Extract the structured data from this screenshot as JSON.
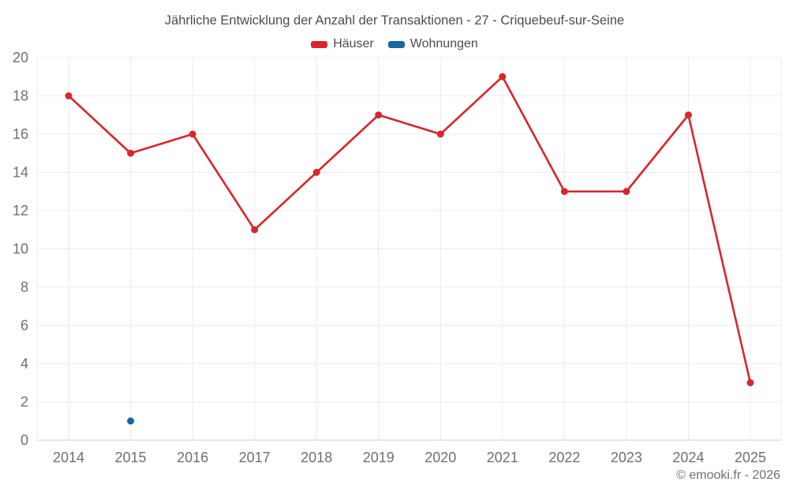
{
  "title": "Jährliche Entwicklung der Anzahl der Transaktionen - 27 - Criquebeuf-sur-Seine",
  "legend": [
    {
      "label": "Häuser",
      "color": "#d7262c"
    },
    {
      "label": "Wohnungen",
      "color": "#1668a2"
    }
  ],
  "copyright": "© emooki.fr - 2026",
  "chart_data": {
    "type": "line",
    "title": "Jährliche Entwicklung der Anzahl der Transaktionen - 27 - Criquebeuf-sur-Seine",
    "categories": [
      "2014",
      "2015",
      "2016",
      "2017",
      "2018",
      "2019",
      "2020",
      "2021",
      "2022",
      "2023",
      "2024",
      "2025"
    ],
    "series": [
      {
        "name": "Häuser",
        "color": "#d7262c",
        "values": [
          18,
          15,
          16,
          11,
          14,
          17,
          16,
          19,
          13,
          13,
          17,
          3
        ]
      },
      {
        "name": "Wohnungen",
        "color": "#1668a2",
        "values": [
          null,
          1,
          null,
          null,
          null,
          null,
          null,
          null,
          null,
          null,
          null,
          null
        ]
      }
    ],
    "ylim": [
      0,
      20
    ],
    "ytick_step": 2,
    "xlabel": "",
    "ylabel": "",
    "grid": true,
    "legend_position": "top"
  },
  "style": {
    "background": "#ffffff",
    "grid_color": "#ebebeb",
    "axis_color": "#d2d2d2",
    "tick_label_color": "#6f6f6f",
    "title_color": "#4c4c4c",
    "copyright_color": "#6f6f6f"
  }
}
